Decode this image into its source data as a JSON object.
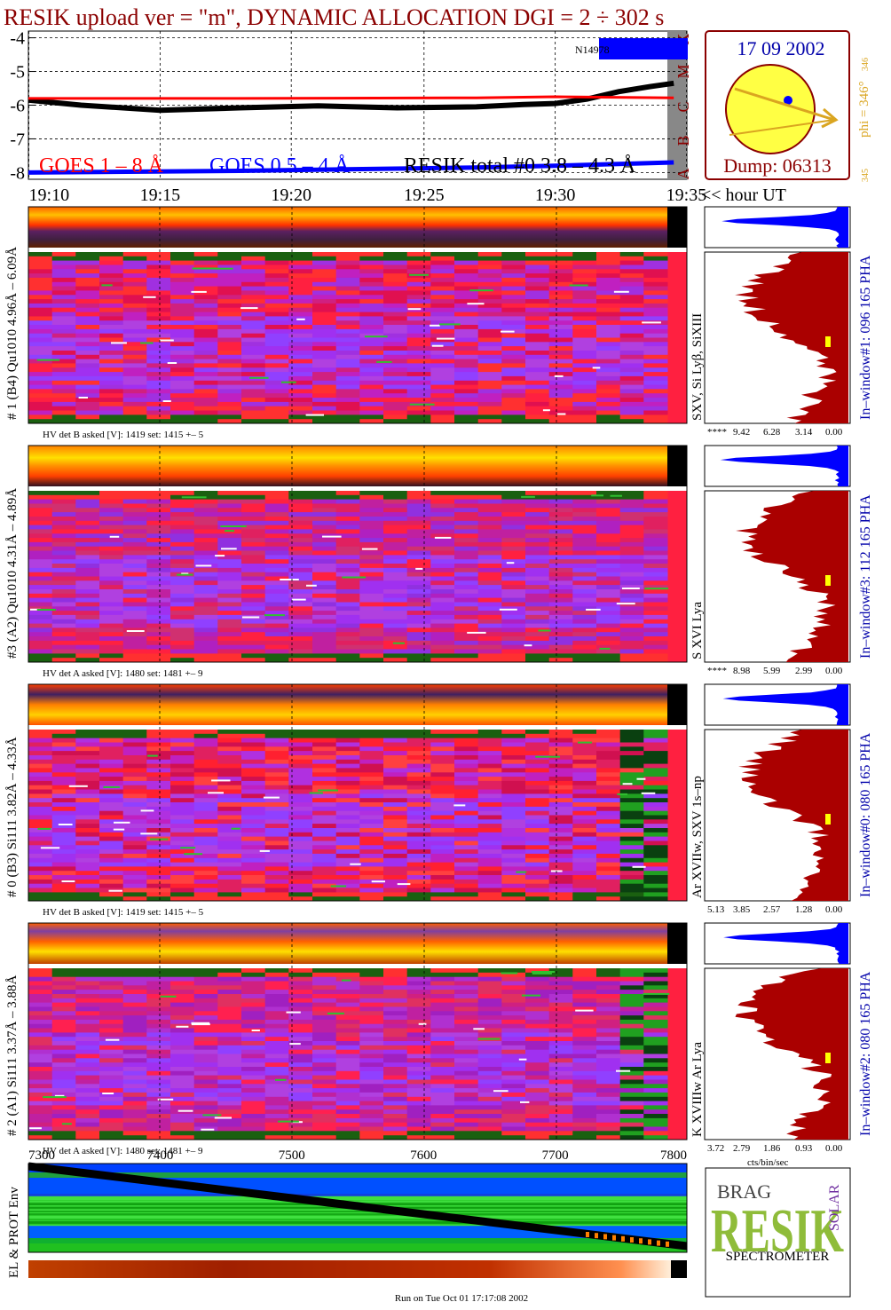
{
  "title": "RESIK upload ver = \"m\", DYNAMIC ALLOCATION  DGI =   2 ÷ 302 s",
  "footer": "Run on Tue Oct 01 17:17:08 2002",
  "colors": {
    "title": "#8b0000",
    "goes1": "#ff0000",
    "goes05": "#0000ff",
    "resik_total": "#000000",
    "sun_disk": "#ffff44",
    "sun_rim": "#8b0000",
    "sun_arrow": "#daa520",
    "histogram_fill": "#aa0000",
    "summary_histogram_fill": "#0000ff"
  },
  "chart_data": [
    {
      "type": "line",
      "name": "light_curve",
      "x": [
        19.167,
        19.25,
        19.333,
        19.417,
        19.5,
        19.583
      ],
      "xlim": [
        19.1667,
        19.5833
      ],
      "ylim": [
        -8.2,
        -3.8
      ],
      "yticks": [
        "-4",
        "-5",
        "-6",
        "-7",
        "-8"
      ],
      "xticks": [
        "19:10",
        "19:15",
        "19:20",
        "19:25",
        "19:30",
        "19:35"
      ],
      "xaxis_suffix": "<< hour UT",
      "goes_classes": [
        "X",
        "M",
        "C",
        "B",
        "A"
      ],
      "series": [
        {
          "name": "RESIK total #0  3.8 – 4.3 Å",
          "color": "#000000",
          "x": [
            19.1667,
            19.2,
            19.25,
            19.3,
            19.35,
            19.4,
            19.45,
            19.48,
            19.5,
            19.52,
            19.54,
            19.56,
            19.575
          ],
          "y": [
            -5.85,
            -6.0,
            -6.15,
            -6.08,
            -6.02,
            -6.08,
            -6.05,
            -5.98,
            -5.95,
            -5.82,
            -5.6,
            -5.45,
            -5.35
          ]
        },
        {
          "name": "GOES 1 – 8 Å",
          "color": "#ff0000",
          "x": [
            19.1667,
            19.3,
            19.45,
            19.5,
            19.575
          ],
          "y": [
            -5.8,
            -5.8,
            -5.78,
            -5.75,
            -5.78
          ]
        },
        {
          "name": "GOES 0.5 – 4 Å",
          "color": "#0000ff",
          "x": [
            19.1667,
            19.3,
            19.45,
            19.5,
            19.575
          ],
          "y": [
            -8.0,
            -7.95,
            -7.85,
            -7.8,
            -7.7
          ]
        }
      ],
      "legend": [
        "GOES 1 – 8 Å",
        "GOES 0.5 – 4 Å",
        "RESIK total #0  3.8 – 4.3 Å"
      ],
      "annotation": "N14978",
      "sun_panel": {
        "date": "17 09 2002",
        "dump": "Dump: 06313",
        "phi": "phi = 346°",
        "phi_small": "346",
        "phi_low": "345"
      }
    },
    {
      "type": "heatmap",
      "name": "spectra_panels",
      "panels": [
        {
          "label": "# 1 (B4) Qu1010 4.96Å – 6.09Å",
          "hv": "HV det B asked [V]:  1419 set:  1415 +–   5",
          "lines": "SXV, Si Lyβ, SiXIII",
          "window": "In–window#1:  096 165 PHA",
          "ticks": [
            "****",
            "9.42",
            "6.28",
            "3.14",
            "0.00"
          ]
        },
        {
          "label": "#3 (A2) Qu1010  4.31Å – 4.89Å",
          "hv": "HV det A asked [V]:  1480 set:  1481 +–   9",
          "lines": "S XVI Lya",
          "window": "In–window#3:  112 165 PHA",
          "ticks": [
            "****",
            "8.98",
            "5.99",
            "2.99",
            "0.00"
          ]
        },
        {
          "label": "# 0 (B3) Si111  3.82Å – 4.33Å",
          "hv": "HV det B asked [V]:  1419 set:  1415 +–   5",
          "lines": "Ar XVIIw, SXV 1s–np",
          "window": "In–window#0:  080 165 PHA",
          "ticks": [
            "5.13",
            "3.85",
            "2.57",
            "1.28",
            "0.00"
          ]
        },
        {
          "label": "# 2 (A1) Si111  3.37Å – 3.88Å",
          "hv": "HV det A asked [V]:  1480 set:  1481 +–   9",
          "lines": "K XVIIIw  Ar Lya",
          "window": "In–window#2:  080 165 PHA",
          "ticks": [
            "3.72",
            "2.79",
            "1.86",
            "0.93",
            "0.00"
          ]
        }
      ],
      "xlabel_hist": "cts/bin/sec"
    },
    {
      "type": "heatmap",
      "name": "environment",
      "ylabel": "EL & PROT Env",
      "x": [
        7300,
        7400,
        7500,
        7600,
        7700,
        7800
      ],
      "xticks": [
        "7300",
        "7400",
        "7500",
        "7600",
        "7700",
        "7800"
      ],
      "xlim": [
        7300,
        7800
      ]
    }
  ],
  "logo": {
    "letters": "RESIK",
    "small": "BRAG",
    "solar": "SOLAR",
    "bottom": "SPECTROMETER"
  }
}
